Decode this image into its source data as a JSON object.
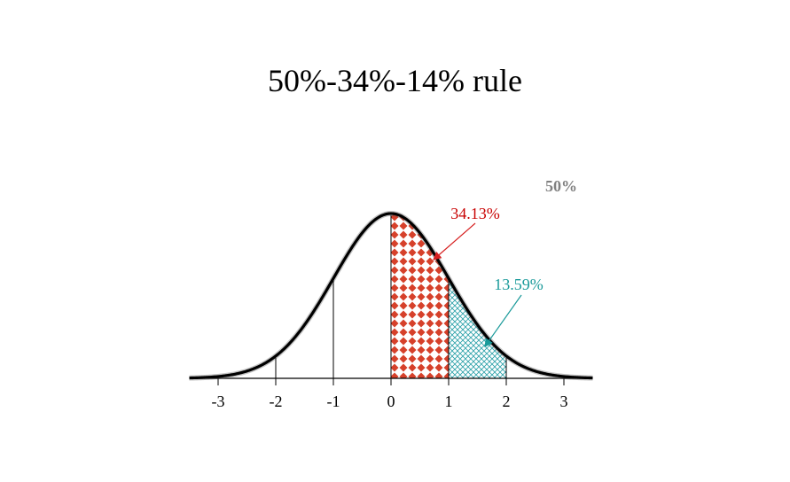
{
  "title": "50%-34%-14% rule",
  "labels": {
    "half": "50%",
    "one_sd": "34.13%",
    "two_sd": "13.59%"
  },
  "ticks": [
    "-3",
    "-2",
    "-1",
    "0",
    "1",
    "2",
    "3"
  ],
  "colors": {
    "curve": "#000000",
    "one_sd_fill": "#d6402a",
    "one_sd_label": "#c80000",
    "two_sd_fill": "#2aa0a8",
    "two_sd_label": "#1a9a9a",
    "half_label": "#808080"
  }
}
